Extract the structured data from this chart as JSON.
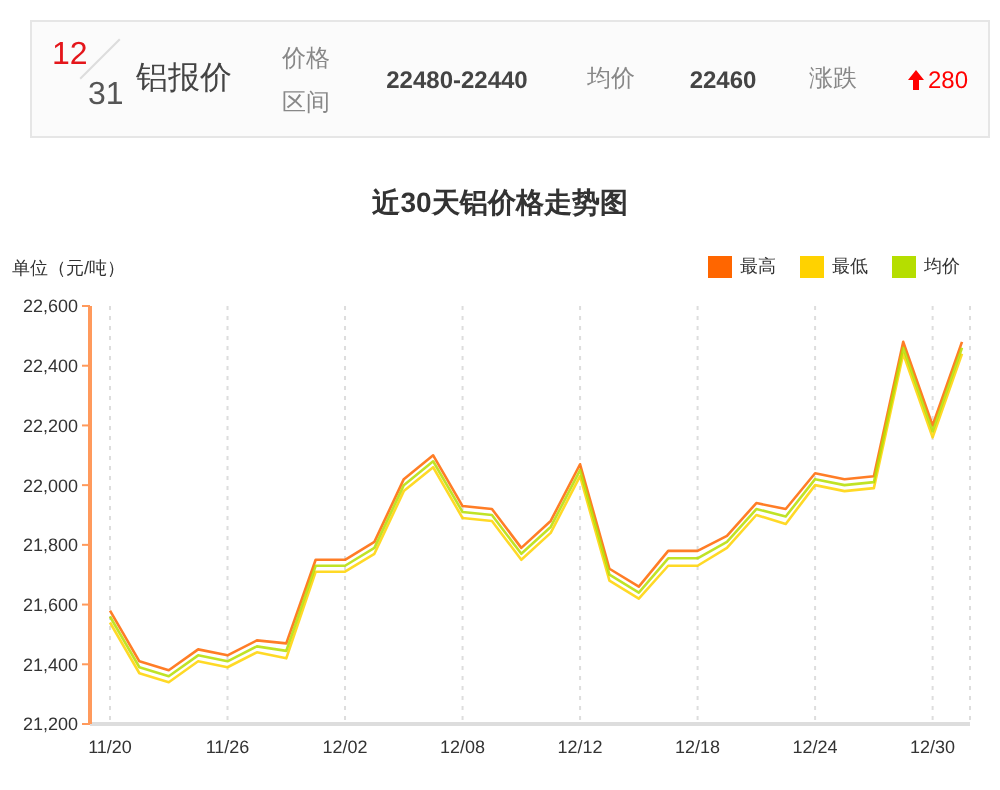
{
  "chart_data": [
    {
      "type": "other",
      "annotations": [
        "12",
        "31",
        "铝报价",
        "价格区间",
        "22480-22440",
        "均价",
        "22460",
        "涨跌",
        "280"
      ]
    },
    {
      "type": "line",
      "title": "近30天铝价格走势图",
      "ylabel": "单位（元/吨）",
      "categories": [
        "11/20",
        null,
        null,
        null,
        "11/26",
        null,
        null,
        null,
        "12/02",
        null,
        null,
        null,
        "12/08",
        null,
        null,
        null,
        "12/12",
        null,
        null,
        null,
        "12/18",
        null,
        null,
        null,
        "12/24",
        null,
        null,
        null,
        "12/30",
        null
      ],
      "series": [
        {
          "name": "最高",
          "color": "#ff6600",
          "values": [
            21580,
            21410,
            21380,
            21450,
            21430,
            21480,
            21470,
            21750,
            21750,
            21810,
            22020,
            22100,
            21930,
            21920,
            21790,
            21880,
            22070,
            21720,
            21660,
            21780,
            21780,
            21830,
            21940,
            21920,
            22040,
            22020,
            22030,
            22480,
            22200,
            22480
          ]
        },
        {
          "name": "最低",
          "color": "#ffd200",
          "values": [
            21540,
            21370,
            21340,
            21410,
            21390,
            21440,
            21420,
            21710,
            21710,
            21770,
            21980,
            22060,
            21890,
            21880,
            21750,
            21840,
            22030,
            21680,
            21620,
            21730,
            21730,
            21790,
            21900,
            21870,
            22000,
            21980,
            21990,
            22440,
            22160,
            22440
          ]
        },
        {
          "name": "均价",
          "color": "#b5de00",
          "values": [
            21560,
            21390,
            21360,
            21430,
            21410,
            21460,
            21445,
            21730,
            21730,
            21790,
            22000,
            22080,
            21910,
            21900,
            21770,
            21860,
            22050,
            21700,
            21640,
            21755,
            21755,
            21810,
            21920,
            21895,
            22020,
            22000,
            22010,
            22460,
            22180,
            22460
          ]
        }
      ],
      "ylim": [
        21200,
        22600
      ],
      "yticks": [
        {
          "value": 21200,
          "label": "21,200"
        },
        {
          "value": 21400,
          "label": "21,400"
        },
        {
          "value": 21600,
          "label": "21,600"
        },
        {
          "value": 21800,
          "label": "21,800"
        },
        {
          "value": 22000,
          "label": "22,000"
        },
        {
          "value": 22200,
          "label": "22,200"
        },
        {
          "value": 22400,
          "label": "22,400"
        },
        {
          "value": 22600,
          "label": "22,600"
        }
      ],
      "grid": "x",
      "legend": "top right",
      "marker": "none",
      "line_style": "solid"
    }
  ]
}
